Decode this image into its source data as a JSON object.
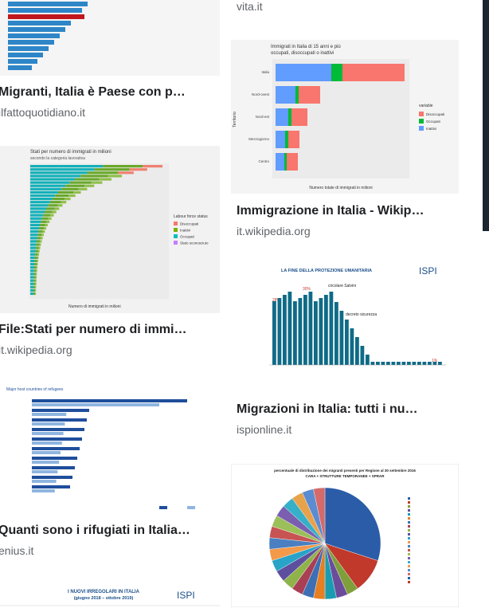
{
  "left_column": [
    {
      "title": "Migranti, Italia è Paese con p…",
      "source": "ilfattoquotidiano.it"
    },
    {
      "image_title": "Stati per numero di immigrati in milioni",
      "image_subtitle": "secondo la categoria lavorativa",
      "legend_title": "Labour force status",
      "legend": [
        "Disoccupati",
        "Inattivi",
        "Occupati",
        "Stato sconosciuto"
      ],
      "axis_label": "Numero di immigrati in milioni",
      "title": "File:Stati per numero di immi…",
      "source": "it.wikipedia.org"
    },
    {
      "image_title": "Major host countries of refugees",
      "title": "Quanti sono i rifugiati in Italia…",
      "source": "enius.it"
    },
    {
      "image_title": "I NUOVI IRREGOLARI IN ITALIA",
      "image_subtitle": "(giugno 2018 – ottobre 2019)",
      "logo": "ISPI"
    }
  ],
  "right_column": [
    {
      "source": "vita.it"
    },
    {
      "image_title": "Immigrati in Italia di 15 anni e più",
      "image_subtitle": "occupati, disoccupati o inattivi",
      "axis_label": "Territorio",
      "x_axis_label": "Numero totale di immigrati in milioni",
      "categories": [
        "Italia",
        "Nord-ovest",
        "Nord-est",
        "Mezzogiorno",
        "Centro"
      ],
      "legend_title": "variable",
      "legend": [
        "Disoccupati",
        "Occupati",
        "Inattivi"
      ],
      "title": "Immigrazione in Italia - Wikip…",
      "source": "it.wikipedia.org"
    },
    {
      "image_title": "LA FINE DELLA PROTEZIONE UMANITARIA",
      "logo": "ISPI",
      "annotations": [
        "circolare Salvini",
        "decreto sicurezza",
        "28%",
        "30%",
        "1%"
      ],
      "title": "Migrazioni in Italia: tutti i nu…",
      "source": "ispionline.it"
    },
    {
      "image_title": "percentuale di distribuzione dei migranti presenti per Regione al 30 settembre 2016",
      "image_subtitle": "CARA + STRUTTURE TEMPORANEE + SPRAR"
    }
  ]
}
